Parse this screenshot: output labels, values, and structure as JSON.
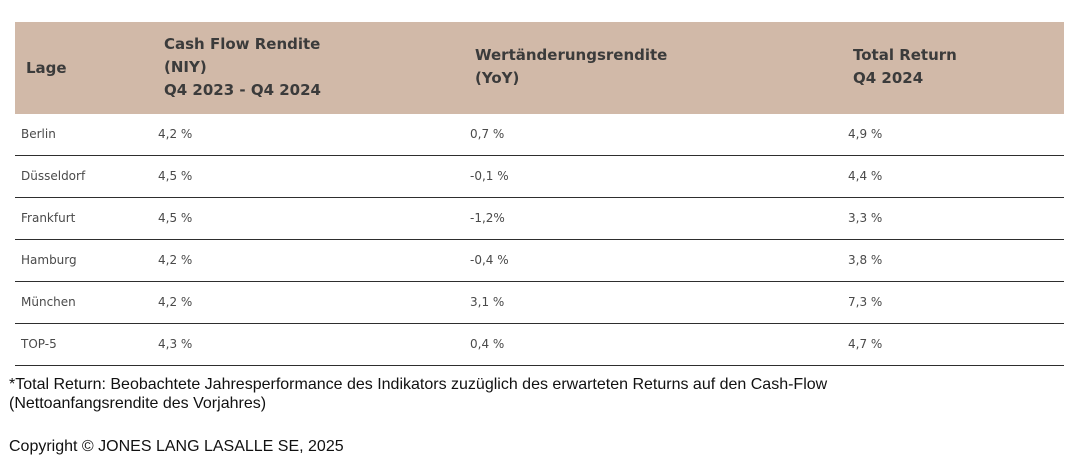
{
  "table": {
    "headers": {
      "lage": [
        "Lage"
      ],
      "cash_flow": [
        "Cash Flow Rendite",
        "(NIY)",
        "Q4 2023 - Q4 2024"
      ],
      "wert": [
        "Wertänderungsrendite",
        "(YoY)"
      ],
      "total_return": [
        "Total Return",
        "Q4 2024"
      ]
    },
    "rows": [
      {
        "lage": "Berlin",
        "cash_flow": "4,2 %",
        "wert": "0,7 %",
        "total_return": "4,9 %"
      },
      {
        "lage": "Düsseldorf",
        "cash_flow": "4,5 %",
        "wert": "-0,1 %",
        "total_return": "4,4 %"
      },
      {
        "lage": "Frankfurt",
        "cash_flow": "4,5 %",
        "wert": "-1,2%",
        "total_return": "3,3 %"
      },
      {
        "lage": "Hamburg",
        "cash_flow": "4,2 %",
        "wert": "-0,4 %",
        "total_return": "3,8 %"
      },
      {
        "lage": "München",
        "cash_flow": "4,2 %",
        "wert": "3,1 %",
        "total_return": "7,3 %"
      },
      {
        "lage": "TOP-5",
        "cash_flow": "4,3 %",
        "wert": "0,4 %",
        "total_return": "4,7 %"
      }
    ]
  },
  "footnote": {
    "line1": "*Total Return: Beobachtete Jahresperformance des Indikators zuzüglich des erwarteten Returns auf den Cash-Flow",
    "line2": "(Nettoanfangsrendite des Vorjahres)"
  },
  "copyright": "Copyright © JONES LANG LASALLE SE, 2025",
  "colors": {
    "header_bg": "#d1b9a8",
    "row_divider": "#2e2e2e"
  }
}
